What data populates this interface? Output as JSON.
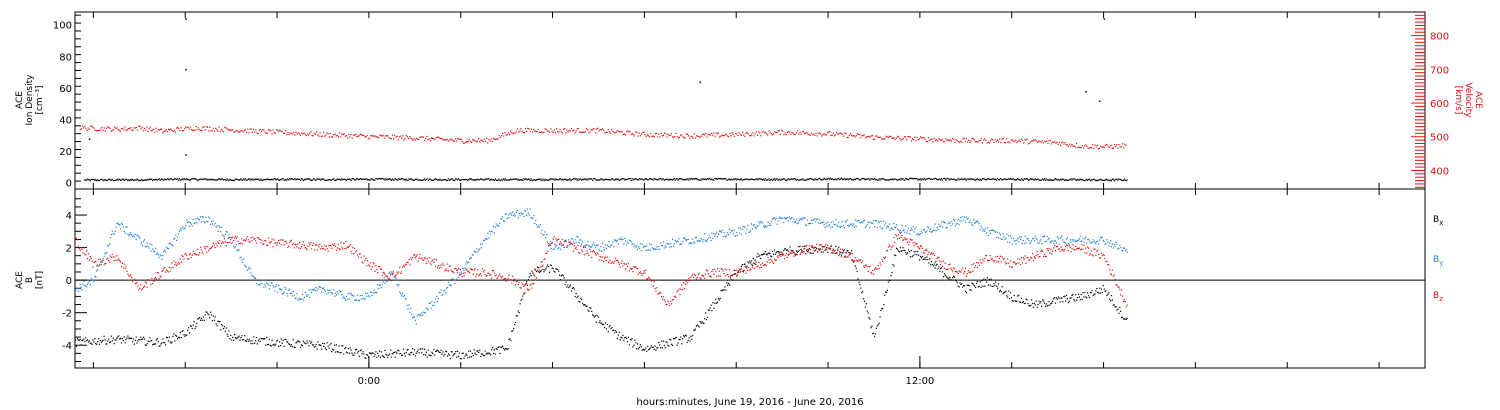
{
  "figure": {
    "xaxis_title": "hours:minutes, June 19, 2016 - June 20, 2016",
    "x_tick_labels": [
      {
        "hour": 0,
        "label": "0:00"
      },
      {
        "hour": 12,
        "label": "12:00"
      }
    ],
    "x_range_hours": [
      -6.4,
      23.0
    ]
  },
  "chart_data": [
    {
      "type": "scatter",
      "panel": "top",
      "ylabel_lines": [
        "ACE",
        "Ion Density",
        "[cm⁻³]"
      ],
      "ylabel_right_lines": [
        "ACE",
        "Velocity",
        "[km/s]"
      ],
      "ylim": [
        -4,
        108
      ],
      "yticks": [
        0,
        20,
        40,
        60,
        80,
        100
      ],
      "ylim_right": [
        345,
        870
      ],
      "yticks_right": [
        400,
        500,
        600,
        700,
        800
      ],
      "right_axis_color": "#e01010",
      "series": [
        {
          "color": "#000000",
          "axis": "left",
          "x": [
            -6.2,
            -5.0,
            -4.0,
            -3.0,
            -2.0,
            -1.0,
            0.0,
            1.0,
            2.0,
            3.0,
            4.0,
            5.0,
            6.0,
            7.0,
            8.0,
            9.0,
            10.0,
            11.0,
            12.0,
            13.0,
            14.0,
            15.0,
            16.0,
            16.5
          ],
          "y": [
            2.0,
            2.2,
            2.5,
            2.3,
            2.4,
            2.3,
            2.5,
            2.4,
            2.3,
            2.3,
            2.4,
            2.4,
            2.4,
            2.5,
            2.6,
            2.4,
            2.7,
            2.5,
            2.6,
            2.5,
            2.5,
            2.3,
            2.0,
            2.2
          ],
          "outliers": [
            [
              -4.0,
              104
            ],
            [
              -4.0,
              72
            ],
            [
              7.2,
              64
            ],
            [
              15.6,
              58
            ],
            [
              15.9,
              52
            ],
            [
              16.0,
              104
            ],
            [
              -6.1,
              28
            ],
            [
              -4.0,
              18
            ]
          ]
        },
        {
          "color": "#e01010",
          "axis": "right",
          "x": [
            -6.3,
            -5.5,
            -5.0,
            -4.5,
            -3.8,
            -3.0,
            -2.0,
            -1.0,
            0.0,
            1.0,
            2.0,
            2.6,
            3.2,
            4.0,
            5.0,
            6.0,
            7.0,
            8.0,
            9.0,
            10.0,
            11.0,
            12.0,
            13.0,
            14.0,
            15.0,
            15.5,
            16.0,
            16.5
          ],
          "y": [
            528,
            524,
            528,
            518,
            528,
            522,
            515,
            508,
            502,
            498,
            490,
            490,
            520,
            520,
            520,
            508,
            504,
            508,
            515,
            510,
            500,
            495,
            490,
            490,
            484,
            474,
            472,
            475
          ]
        }
      ]
    },
    {
      "type": "scatter",
      "panel": "bottom",
      "ylabel_lines": [
        "ACE",
        "B",
        "[nT]"
      ],
      "ylim": [
        -5.4,
        5.6
      ],
      "yticks": [
        -4,
        -2,
        0,
        2,
        4
      ],
      "zero_line": true,
      "series": [
        {
          "name": "Bx",
          "label_main": "B",
          "label_sub": "x",
          "color": "#000000",
          "x": [
            -6.4,
            -5.5,
            -4.5,
            -4.0,
            -3.5,
            -3.0,
            -2.0,
            -1.0,
            0.0,
            1.0,
            2.0,
            3.0,
            3.5,
            4.0,
            5.0,
            5.5,
            6.0,
            7.0,
            8.0,
            8.5,
            9.0,
            10.0,
            10.5,
            11.0,
            11.5,
            12.0,
            12.5,
            13.0,
            13.5,
            14.0,
            14.5,
            15.0,
            15.5,
            16.0,
            16.5
          ],
          "y": [
            -3.8,
            -3.6,
            -3.8,
            -3.2,
            -2.0,
            -3.5,
            -3.8,
            -4.0,
            -4.6,
            -4.4,
            -4.6,
            -4.2,
            0.5,
            0.8,
            -2.5,
            -3.5,
            -4.2,
            -3.5,
            0.5,
            1.5,
            1.8,
            2.0,
            1.6,
            -3.5,
            2.0,
            1.5,
            0.5,
            -0.5,
            0.0,
            -1.0,
            -1.5,
            -1.2,
            -1.0,
            -0.5,
            -2.5
          ]
        },
        {
          "name": "By",
          "label_main": "B",
          "label_sub": "y",
          "color": "#1e7fd6",
          "x": [
            -6.4,
            -6.0,
            -5.5,
            -5.0,
            -4.5,
            -4.0,
            -3.5,
            -3.0,
            -2.5,
            -2.0,
            -1.5,
            -1.0,
            -0.5,
            0.0,
            0.5,
            1.0,
            1.5,
            2.0,
            2.5,
            3.0,
            3.5,
            4.0,
            4.5,
            5.0,
            5.5,
            6.0,
            7.0,
            8.0,
            9.0,
            10.0,
            11.0,
            12.0,
            13.0,
            13.5,
            14.0,
            15.0,
            16.0,
            16.5
          ],
          "y": [
            -0.5,
            0.0,
            3.5,
            2.5,
            1.5,
            3.5,
            3.8,
            2.5,
            0.0,
            -0.5,
            -1.0,
            -0.5,
            -1.0,
            -1.0,
            0.5,
            -2.5,
            -1.0,
            0.5,
            2.5,
            4.0,
            4.2,
            2.0,
            2.5,
            2.0,
            2.5,
            2.0,
            2.5,
            3.0,
            3.8,
            3.5,
            3.5,
            3.0,
            3.8,
            3.0,
            2.5,
            2.5,
            2.5,
            1.8
          ]
        },
        {
          "name": "Bz",
          "label_main": "B",
          "label_sub": "z",
          "color": "#e01010",
          "x": [
            -6.4,
            -6.0,
            -5.5,
            -5.0,
            -4.5,
            -4.0,
            -3.5,
            -3.0,
            -2.5,
            -2.0,
            -1.5,
            -1.0,
            -0.5,
            0.0,
            0.5,
            1.0,
            1.5,
            2.0,
            2.5,
            3.0,
            3.5,
            4.0,
            4.5,
            5.0,
            5.5,
            6.0,
            6.5,
            7.0,
            7.5,
            8.0,
            8.5,
            9.0,
            9.5,
            10.0,
            10.5,
            11.0,
            11.5,
            12.0,
            12.5,
            13.0,
            13.5,
            14.0,
            14.5,
            15.0,
            15.5,
            16.0,
            16.5
          ],
          "y": [
            2.5,
            1.0,
            1.5,
            -0.5,
            0.5,
            1.5,
            2.0,
            2.5,
            2.5,
            2.3,
            2.2,
            2.0,
            2.2,
            1.0,
            0.2,
            1.5,
            1.0,
            0.5,
            0.5,
            0.2,
            -0.5,
            2.5,
            2.0,
            1.5,
            1.0,
            0.5,
            -1.5,
            0.2,
            0.5,
            0.5,
            1.0,
            1.5,
            2.0,
            2.0,
            1.5,
            0.5,
            2.8,
            2.0,
            1.0,
            0.5,
            1.5,
            1.0,
            1.5,
            2.0,
            2.0,
            1.5,
            -1.5
          ]
        }
      ]
    }
  ]
}
